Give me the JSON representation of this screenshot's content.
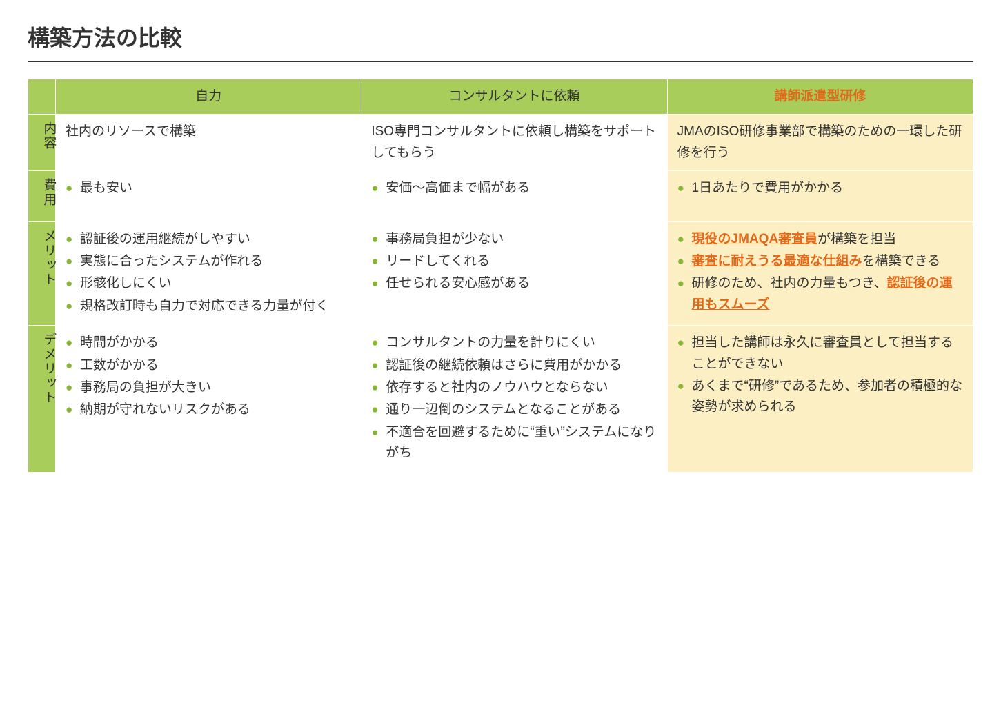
{
  "title": "構築方法の比較",
  "colors": {
    "header_bg": "#a8cd5a",
    "highlight_bg": "#fdefc4",
    "bullet": "#88b536",
    "emph": "#e06a1a",
    "text": "#333333",
    "bg": "#ffffff"
  },
  "columns": {
    "c1": {
      "label": "自力",
      "highlight": false
    },
    "c2": {
      "label": "コンサルタントに依頼",
      "highlight": false
    },
    "c3": {
      "label": "講師派遣型研修",
      "highlight": true
    }
  },
  "rows": {
    "naiyo": {
      "label": "内容",
      "c1": {
        "text": "社内のリソースで構築"
      },
      "c2": {
        "text": "ISO専門コンサルタントに依頼し構築をサポートしてもらう"
      },
      "c3": {
        "text": "JMAのISO研修事業部で構築のための一環した研修を行う"
      }
    },
    "hiyo": {
      "label": "費用",
      "c1": {
        "items": [
          "最も安い"
        ]
      },
      "c2": {
        "items": [
          "安価〜高価まで幅がある"
        ]
      },
      "c3": {
        "items": [
          "1日あたりで費用がかかる"
        ]
      }
    },
    "merit": {
      "label": "メリット",
      "c1": {
        "items": [
          "認証後の運用継続がしやすい",
          "実態に合ったシステムが作れる",
          "形骸化しにくい",
          "規格改訂時も自力で対応できる力量が付く"
        ]
      },
      "c2": {
        "items": [
          "事務局負担が少ない",
          "リードしてくれる",
          "任せられる安心感がある"
        ]
      },
      "c3": {
        "rich_items": [
          {
            "parts": [
              {
                "t": "現役のJMAQA審査員",
                "emph": true
              },
              {
                "t": "が構築を担当"
              }
            ]
          },
          {
            "parts": [
              {
                "t": "審査に耐えうる最適な仕組み",
                "emph": true
              },
              {
                "t": "を構築できる"
              }
            ]
          },
          {
            "parts": [
              {
                "t": "研修のため、社内の力量もつき、"
              },
              {
                "t": "認証後の運用もスムーズ",
                "emph": true
              }
            ]
          }
        ]
      }
    },
    "demerit": {
      "label": "デメリット",
      "c1": {
        "items": [
          "時間がかかる",
          "工数がかかる",
          "事務局の負担が大きい",
          "納期が守れないリスクがある"
        ]
      },
      "c2": {
        "items": [
          "コンサルタントの力量を計りにくい",
          "認証後の継続依頼はさらに費用がかかる",
          "依存すると社内のノウハウとならない",
          "通り一辺倒のシステムとなることがある",
          "不適合を回避するために“重い”システムになりがち"
        ]
      },
      "c3": {
        "items": [
          "担当した講師は永久に審査員として担当することができない",
          "あくまで“研修”であるため、参加者の積極的な姿勢が求められる"
        ]
      }
    }
  }
}
